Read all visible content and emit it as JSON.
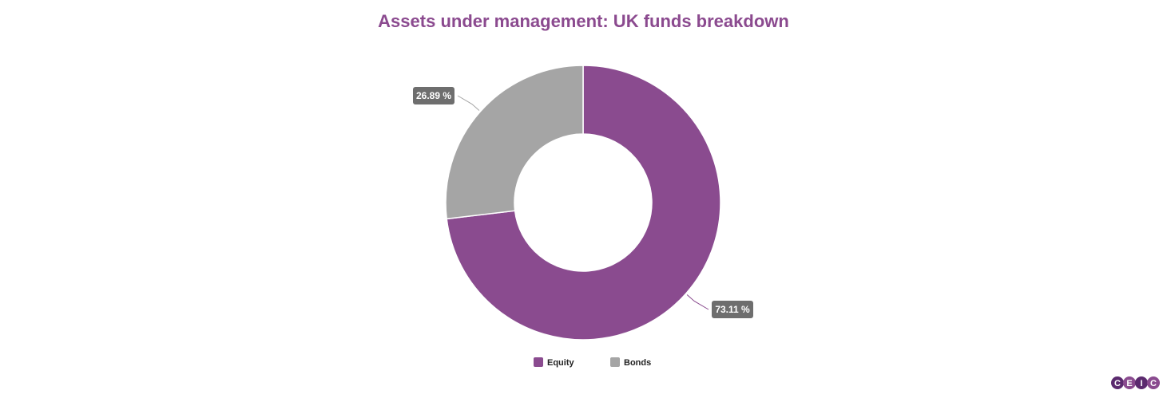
{
  "chart_data": {
    "type": "pie",
    "title": "Assets under management: UK funds breakdown",
    "donut": true,
    "legend_position": "bottom",
    "categories": [
      "Equity",
      "Bonds"
    ],
    "values": [
      73.11,
      26.89
    ],
    "value_labels": [
      "73.11 %",
      "26.89 %"
    ],
    "colors": [
      "#8a4b8f",
      "#a5a5a5"
    ]
  },
  "branding": {
    "logo": "CEIC",
    "logo_color": "#5b2a6e"
  }
}
